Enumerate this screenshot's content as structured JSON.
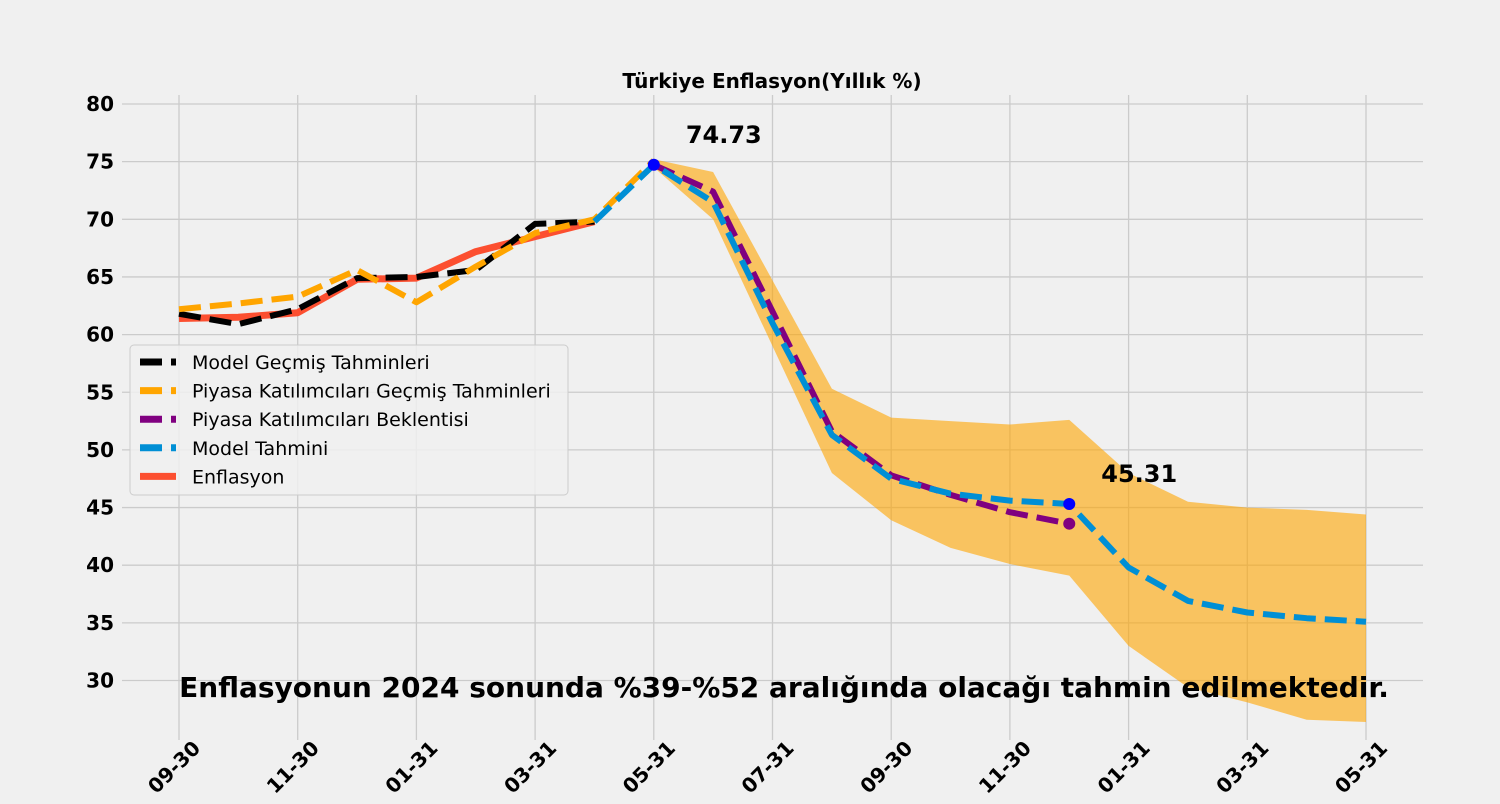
{
  "chart_data": {
    "type": "line",
    "title": "Türkiye Enflasyon(Yıllık %)",
    "ylim": [
      25,
      80
    ],
    "yticks": [
      30,
      35,
      40,
      45,
      50,
      55,
      60,
      65,
      70,
      75,
      80
    ],
    "xtick_labels": [
      "09-30",
      "11-30",
      "01-31",
      "03-31",
      "05-31",
      "07-31",
      "09-30",
      "11-30",
      "01-31",
      "03-31",
      "05-31"
    ],
    "x_dates": [
      "2022-09-30",
      "2022-10-31",
      "2022-11-30",
      "2022-12-31",
      "2023-01-31",
      "2023-02-28",
      "2023-03-31",
      "2023-04-30",
      "2023-05-31",
      "2023-06-30",
      "2023-07-31",
      "2023-08-31",
      "2023-09-30",
      "2023-10-31",
      "2023-11-30",
      "2023-12-31",
      "2024-01-31",
      "2024-02-29",
      "2024-03-31",
      "2024-04-30",
      "2024-05-31"
    ],
    "grid": true,
    "legend_position": "center-left",
    "series": [
      {
        "name": "Model Geçmiş Tahminleri",
        "color": "#000000",
        "style": "dashed",
        "values": [
          61.8,
          60.9,
          62.2,
          64.9,
          65.0,
          65.6,
          69.6,
          69.8,
          null,
          null,
          null,
          null,
          null,
          null,
          null,
          null,
          null,
          null,
          null,
          null,
          null
        ]
      },
      {
        "name": "Piyasa Katılımcıları Geçmiş Tahminleri",
        "color": "#ffa500",
        "style": "dashed",
        "values": [
          62.2,
          62.7,
          63.3,
          65.6,
          62.8,
          65.9,
          68.8,
          70.0,
          75.1,
          null,
          null,
          null,
          null,
          null,
          null,
          null,
          null,
          null,
          null,
          null,
          null
        ]
      },
      {
        "name": "Piyasa Katılımcıları Beklentisi",
        "color": "#800080",
        "style": "dashed",
        "values": [
          null,
          null,
          null,
          null,
          null,
          null,
          null,
          null,
          74.73,
          72.4,
          62.0,
          51.6,
          47.8,
          46.1,
          44.6,
          43.6,
          null,
          null,
          null,
          null,
          null
        ]
      },
      {
        "name": "Model Tahmini",
        "color": "#008fd5",
        "style": "dashed",
        "values": [
          null,
          null,
          null,
          null,
          null,
          null,
          null,
          69.8,
          74.73,
          71.5,
          61.0,
          51.3,
          47.5,
          46.2,
          45.6,
          45.31,
          39.8,
          36.9,
          35.9,
          35.4,
          35.1
        ]
      },
      {
        "name": "Enflasyon",
        "color": "#fc4f30",
        "style": "solid",
        "values": [
          61.4,
          61.5,
          61.9,
          64.8,
          64.9,
          67.2,
          68.5,
          69.8,
          null,
          null,
          null,
          null,
          null,
          null,
          null,
          null,
          null,
          null,
          null,
          null,
          null
        ]
      }
    ],
    "band": {
      "color": "#ffa500",
      "start_index": 8,
      "upper": [
        75.2,
        74.1,
        64.7,
        55.3,
        52.8,
        52.5,
        52.2,
        52.6,
        48.0,
        45.5,
        45.0,
        44.8,
        44.4
      ],
      "lower": [
        74.5,
        70.0,
        59.0,
        48.0,
        43.9,
        41.5,
        40.1,
        39.1,
        33.0,
        29.4,
        28.1,
        26.6,
        26.4
      ]
    },
    "markers": [
      {
        "series": "Model Tahmini",
        "index": 8,
        "value": 74.73,
        "color": "#0000ff"
      },
      {
        "series": "Model Tahmini",
        "index": 15,
        "value": 45.31,
        "color": "#0000ff"
      },
      {
        "series": "Piyasa Katılımcıları Beklentisi",
        "index": 15,
        "value": 43.6,
        "color": "#800080"
      }
    ],
    "annotations": [
      {
        "text": "74.73",
        "index": 8,
        "value": 74.73
      },
      {
        "text": "45.31",
        "index": 15,
        "value": 45.31
      }
    ],
    "caption": "Enflasyonun 2024 sonunda %39-%52 aralığında olacağı tahmin edilmektedir."
  }
}
